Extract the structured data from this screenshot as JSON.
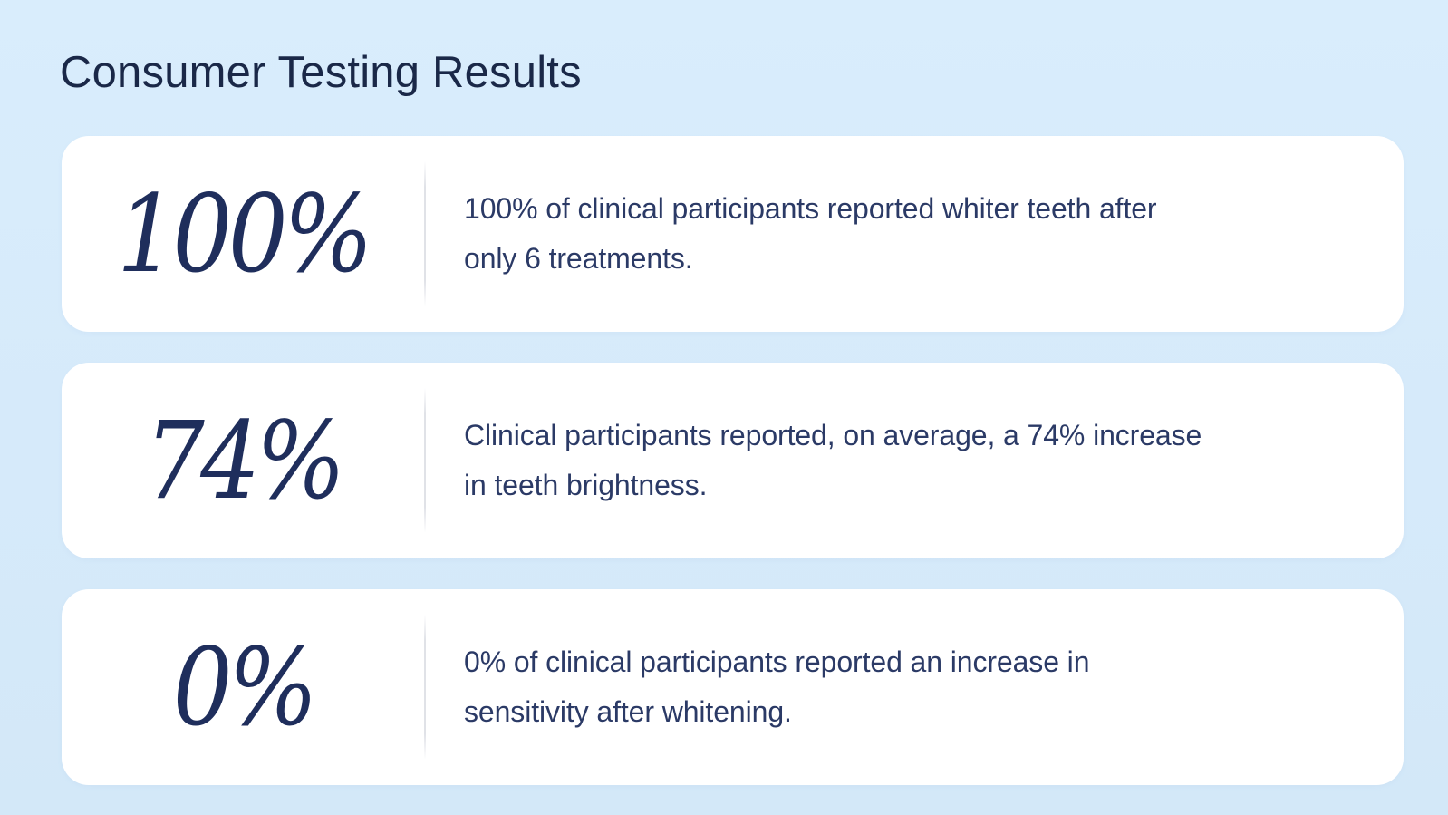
{
  "page": {
    "title": "Consumer Testing Results"
  },
  "theme": {
    "background_color": "#d7ebfa",
    "card_background_color": "#ffffff",
    "heading_color": "#1a2848",
    "stat_number_color": "#1f2e5c",
    "description_color": "#2b3a66",
    "divider_color": "#dee0e6"
  },
  "cards": [
    {
      "stat": "100%",
      "description": "100% of clinical participants reported whiter teeth after only 6 treatments.",
      "lines": {
        "line1": "100% of clinical participants reported whiter teeth after",
        "line2": "only 6 treatments."
      }
    },
    {
      "stat": "74%",
      "description": "Clinical participants reported, on average, a 74% increase in teeth brightness.",
      "lines": {
        "line1": "Clinical participants reported, on average, a 74% increase",
        "line2": "in teeth brightness."
      }
    },
    {
      "stat": "0%",
      "description": "0% of clinical participants reported an increase in sensitivity after whitening.",
      "lines": {
        "line1": "0% of clinical participants reported an increase in",
        "line2": "sensitivity after whitening."
      }
    }
  ]
}
